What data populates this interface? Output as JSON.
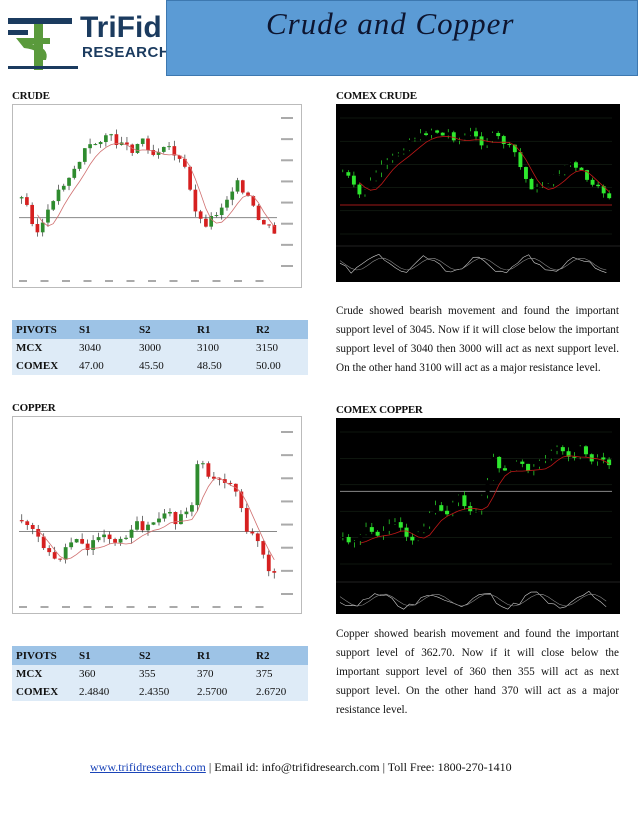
{
  "header": {
    "title": "Crude and Copper",
    "logo_name": "TriFid",
    "logo_sub": "RESEARCH",
    "colors": {
      "title_bar": "#5b9bd5",
      "logo_blue": "#1b3b5f",
      "logo_green": "#5a9a3c"
    }
  },
  "crude": {
    "label": "CRUDE",
    "comex_label": "COMEX CRUDE",
    "table": {
      "headers": [
        "PIVOTS",
        "S1",
        "S2",
        "R1",
        "R2"
      ],
      "rows": [
        {
          "name": "MCX",
          "s1": "3040",
          "s2": "3000",
          "r1": "3100",
          "r2": "3150"
        },
        {
          "name": "COMEX",
          "s1": "47.00",
          "s2": "45.50",
          "r1": "48.50",
          "r2": "50.00"
        }
      ]
    },
    "commentary": "Crude showed bearish movement and found the important support level of 3045. Now if it will close below the important support level of 3040 then 3000 will act as next support level. On the other hand 3100 will act as a major resistance level."
  },
  "copper": {
    "label": "COPPER",
    "comex_label": "COMEX COPPER",
    "table": {
      "headers": [
        "PIVOTS",
        "S1",
        "S2",
        "R1",
        "R2"
      ],
      "rows": [
        {
          "name": "MCX",
          "s1": "360",
          "s2": "355",
          "r1": "370",
          "r2": "375"
        },
        {
          "name": "COMEX",
          "s1": "2.4840",
          "s2": "2.4350",
          "r1": "2.5700",
          "r2": "2.6720"
        }
      ]
    },
    "commentary": "Copper showed bearish movement and found the important support level of 362.70. Now if it will close below the important support level of 360 then 355 will act as next support level. On the other hand 370 will act as a major resistance level."
  },
  "footer": {
    "website": "www.trifidresearch.com",
    "contact": " | Email id: info@trifidresearch.com | Toll Free: 1800-270-1410"
  }
}
